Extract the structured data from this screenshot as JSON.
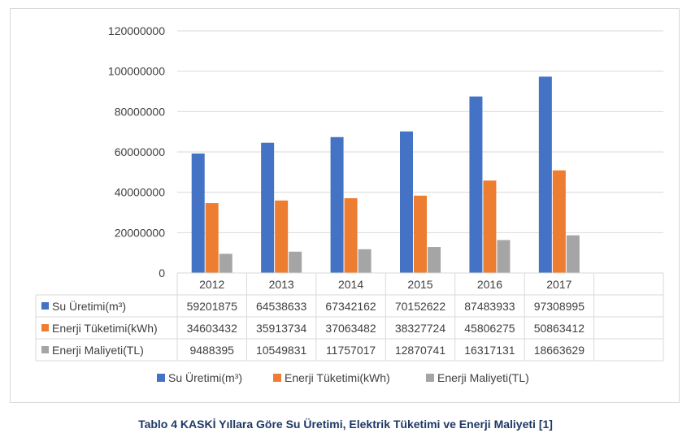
{
  "chart_data": {
    "type": "bar",
    "categories": [
      "2012",
      "2013",
      "2014",
      "2015",
      "2016",
      "2017"
    ],
    "series": [
      {
        "name": "Su Üretimi(m³)",
        "color": "#4472c4",
        "values": [
          59201875,
          64538633,
          67342162,
          70152622,
          87483933,
          97308995
        ],
        "value_labels": [
          "59201875",
          "64538633",
          "67342162",
          "70152622",
          "87483933",
          "97308995"
        ]
      },
      {
        "name": "Enerji Tüketimi(kWh)",
        "color": "#ed7d31",
        "values": [
          34603432,
          35913734,
          37063482,
          38327724,
          45806275,
          50863412
        ],
        "value_labels": [
          "34603432",
          "35913734",
          "37063482",
          "38327724",
          "45806275",
          "50863412"
        ]
      },
      {
        "name": "Enerji Maliyeti(TL)",
        "color": "#a5a5a5",
        "values": [
          9488395,
          10549831,
          11757017,
          12870741,
          16317131,
          18663629
        ],
        "value_labels": [
          "9488395",
          "10549831",
          "11757017",
          "12870741",
          "16317131",
          "18663629"
        ]
      }
    ],
    "ylim": [
      0,
      120000000
    ],
    "yticks": [
      "0",
      "20000000",
      "40000000",
      "60000000",
      "80000000",
      "100000000",
      "120000000"
    ],
    "grid": true,
    "legend_position": "bottom",
    "data_table": true
  },
  "caption": "Tablo 4 KASKİ Yıllara Göre Su Üretimi, Elektrik Tüketimi ve Enerji Maliyeti [1]"
}
